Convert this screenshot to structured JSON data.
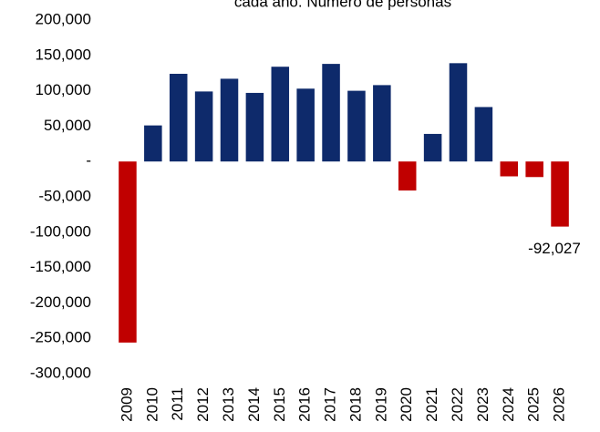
{
  "chart_data": {
    "type": "bar",
    "title": "cada año. Número de personas",
    "categories": [
      "2009",
      "2010",
      "2011",
      "2012",
      "2013",
      "2014",
      "2015",
      "2016",
      "2017",
      "2018",
      "2019",
      "2020",
      "2021",
      "2022",
      "2023",
      "2024",
      "2025",
      "2026"
    ],
    "values": [
      -256000,
      51000,
      124000,
      99000,
      117000,
      97000,
      134000,
      103000,
      138000,
      100000,
      108000,
      -41000,
      39000,
      139000,
      77000,
      -21000,
      -22000,
      -92027
    ],
    "value_labels": [
      null,
      null,
      null,
      null,
      null,
      null,
      null,
      null,
      null,
      null,
      null,
      null,
      null,
      null,
      null,
      null,
      null,
      "-92,027"
    ],
    "positive_color": "#0e2a6b",
    "negative_color": "#c00000",
    "ylim": [
      -300000,
      200000
    ],
    "yticks": [
      {
        "value": -300000,
        "label": "-300,000"
      },
      {
        "value": -250000,
        "label": "-250,000"
      },
      {
        "value": -200000,
        "label": "-200,000"
      },
      {
        "value": -150000,
        "label": "-150,000"
      },
      {
        "value": -100000,
        "label": "-100,000"
      },
      {
        "value": -50000,
        "label": "-50,000"
      },
      {
        "value": 0,
        "label": "-"
      },
      {
        "value": 50000,
        "label": "50,000"
      },
      {
        "value": 100000,
        "label": "100,000"
      },
      {
        "value": 150000,
        "label": "150,000"
      },
      {
        "value": 200000,
        "label": "200,000"
      }
    ],
    "grid": false
  }
}
